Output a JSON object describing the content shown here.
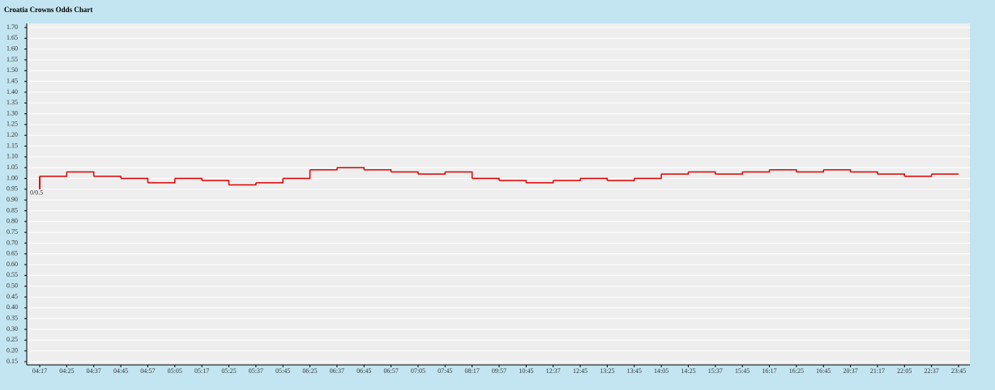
{
  "chart_data": {
    "type": "step",
    "title": "Croatia Crowns Odds Chart",
    "categories": [
      "04:17",
      "04:25",
      "04:37",
      "04:45",
      "04:57",
      "05:05",
      "05:17",
      "05:25",
      "05:37",
      "05:45",
      "06:25",
      "06:37",
      "06:45",
      "06:57",
      "07:05",
      "07:45",
      "08:17",
      "09:57",
      "10:45",
      "12:37",
      "12:45",
      "13:25",
      "13:45",
      "14:05",
      "14:25",
      "15:37",
      "15:45",
      "16:17",
      "16:25",
      "16:45",
      "20:37",
      "21:17",
      "22:05",
      "22:37",
      "23:45"
    ],
    "series": [
      {
        "color": "#dd0000",
        "open": 0.95,
        "open_label": "0/0.5",
        "values": [
          1.01,
          1.03,
          1.01,
          1.0,
          0.98,
          1.0,
          0.99,
          0.97,
          0.98,
          1.0,
          1.04,
          1.05,
          1.04,
          1.03,
          1.02,
          1.03,
          1.0,
          0.99,
          0.98,
          0.99,
          1.0,
          0.99,
          1.0,
          1.02,
          1.03,
          1.02,
          1.03,
          1.04,
          1.03,
          1.04,
          1.03,
          1.02,
          1.01,
          1.02,
          1.02
        ]
      }
    ],
    "ylim": [
      0.15,
      1.7
    ],
    "yticks": [
      0.15,
      {
        "value": 0.2,
        "label": "0.20"
      },
      0.25,
      {
        "value": 0.3,
        "label": "0.30"
      },
      0.35,
      {
        "value": 0.4,
        "label": "0.40"
      },
      0.45,
      {
        "value": 0.5,
        "label": "0.50"
      },
      0.55,
      {
        "value": 0.6,
        "label": "0.60"
      },
      0.65,
      {
        "value": 0.7,
        "label": "0.70"
      },
      0.75,
      {
        "value": 0.8,
        "label": "0.80"
      },
      0.85,
      {
        "value": 0.9,
        "label": "0.90"
      },
      0.95,
      {
        "value": 1,
        "label": "1.00"
      },
      1.05,
      {
        "value": 1.1,
        "label": "1.10"
      },
      1.15,
      {
        "value": 1.2,
        "label": "1.20"
      },
      1.25,
      {
        "value": 1.3,
        "label": "1.30"
      },
      1.35,
      {
        "value": 1.4,
        "label": "1.40"
      },
      1.45,
      {
        "value": 1.5,
        "label": "1.50"
      },
      1.55,
      {
        "value": 1.6,
        "label": "1.60"
      },
      1.65,
      {
        "value": 1.7,
        "label": "1.70"
      }
    ],
    "grid": true
  }
}
